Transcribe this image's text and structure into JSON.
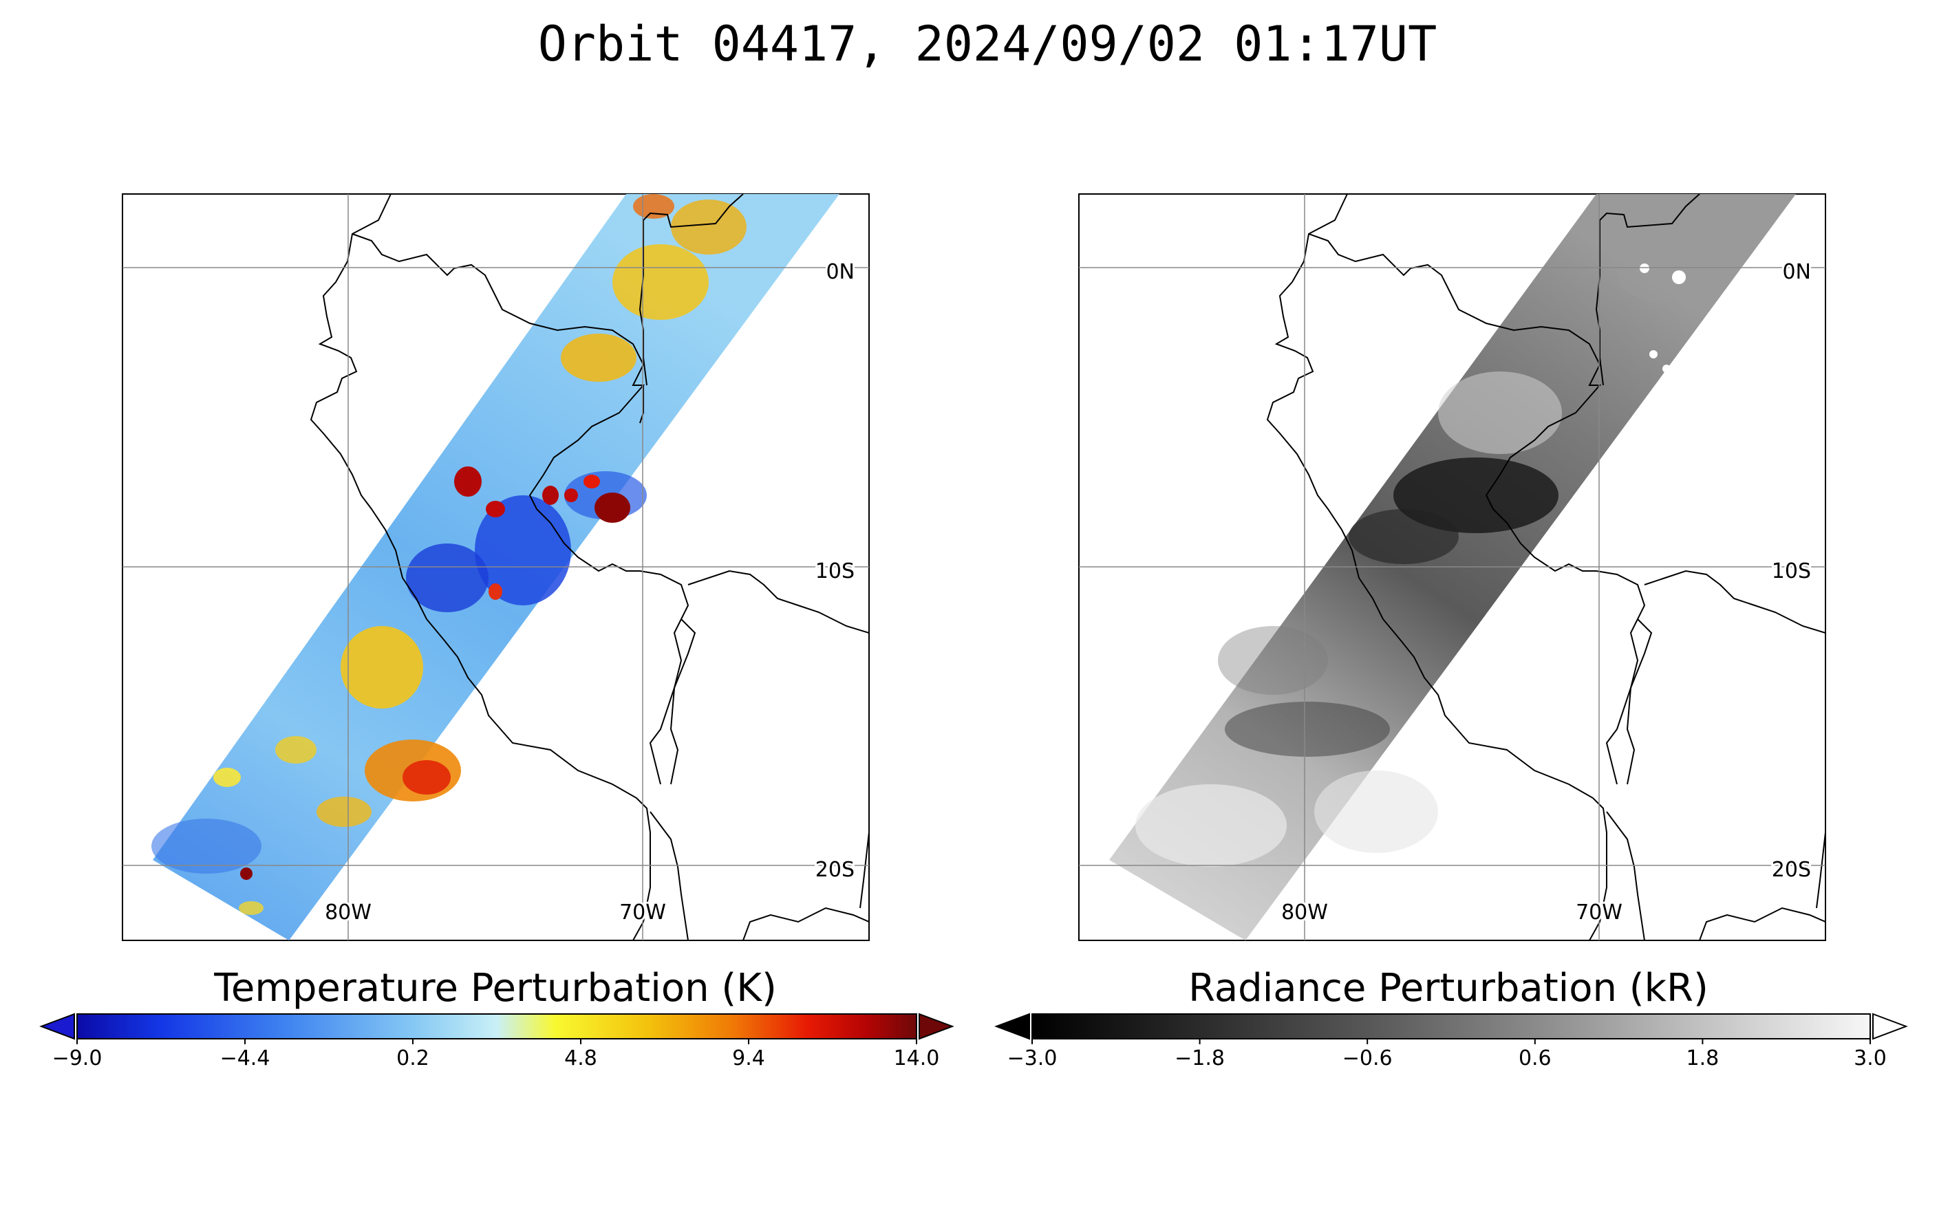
{
  "title": "Orbit 04417, 2024/09/02 01:17UT",
  "colors": {
    "temperature_scale": [
      "#0b0ba8",
      "#1437e6",
      "#3f84f0",
      "#85c8f4",
      "#c9f0f6",
      "#f8f830",
      "#f3c20c",
      "#f07a06",
      "#e71a04",
      "#b50404",
      "#6e0808"
    ],
    "radiance_scale": [
      "#000000",
      "#2b2b2b",
      "#575757",
      "#8a8a8a",
      "#c2c2c2",
      "#f2f2f2"
    ],
    "coastline": "#000000",
    "gridline": "#888888"
  },
  "panels": [
    {
      "id": "temperature",
      "colorbar_title": "Temperature Perturbation (K)",
      "ticks": [
        "-9.0",
        "-4.4",
        "0.2",
        "4.8",
        "9.4",
        "14.0"
      ],
      "range": [
        -9.0,
        14.0
      ],
      "extend": "both",
      "lon_labels": [
        "80W",
        "70W"
      ],
      "lat_labels": [
        "0N",
        "10S",
        "20S"
      ]
    },
    {
      "id": "radiance",
      "colorbar_title": "Radiance Perturbation (kR)",
      "ticks": [
        "-3.0",
        "-1.8",
        "-0.6",
        "0.6",
        "1.8",
        "3.0"
      ],
      "range": [
        -3.0,
        3.0
      ],
      "extend": "both",
      "lon_labels": [
        "80W",
        "70W"
      ],
      "lat_labels": [
        "0N",
        "10S",
        "20S"
      ]
    }
  ]
}
